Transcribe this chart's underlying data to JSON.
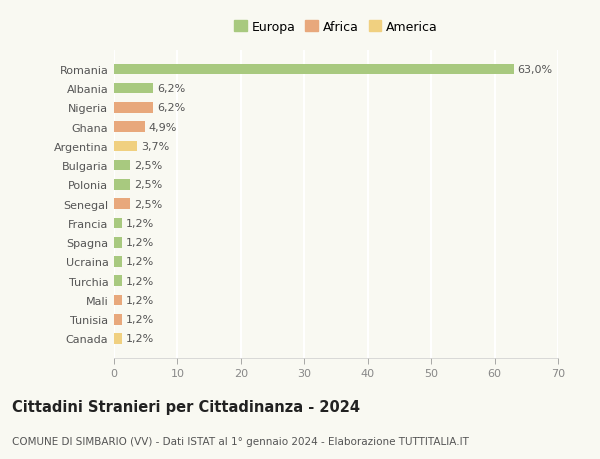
{
  "categories": [
    "Romania",
    "Albania",
    "Nigeria",
    "Ghana",
    "Argentina",
    "Bulgaria",
    "Polonia",
    "Senegal",
    "Francia",
    "Spagna",
    "Ucraina",
    "Turchia",
    "Mali",
    "Tunisia",
    "Canada"
  ],
  "values": [
    63.0,
    6.2,
    6.2,
    4.9,
    3.7,
    2.5,
    2.5,
    2.5,
    1.2,
    1.2,
    1.2,
    1.2,
    1.2,
    1.2,
    1.2
  ],
  "continents": [
    "Europa",
    "Europa",
    "Africa",
    "Africa",
    "America",
    "Europa",
    "Europa",
    "Africa",
    "Europa",
    "Europa",
    "Europa",
    "Europa",
    "Africa",
    "Africa",
    "America"
  ],
  "colors": {
    "Europa": "#a8c97f",
    "Africa": "#e8a87c",
    "America": "#f0d080"
  },
  "xlim": [
    0,
    70
  ],
  "xticks": [
    0,
    10,
    20,
    30,
    40,
    50,
    60,
    70
  ],
  "title": "Cittadini Stranieri per Cittadinanza - 2024",
  "subtitle": "COMUNE DI SIMBARIO (VV) - Dati ISTAT al 1° gennaio 2024 - Elaborazione TUTTITALIA.IT",
  "background_color": "#f9f9f2",
  "plot_bg_color": "#f9f9f2",
  "grid_color": "#ffffff",
  "bar_height": 0.55,
  "label_fontsize": 8,
  "tick_fontsize": 8,
  "title_fontsize": 10.5,
  "subtitle_fontsize": 7.5,
  "legend_fontsize": 9
}
